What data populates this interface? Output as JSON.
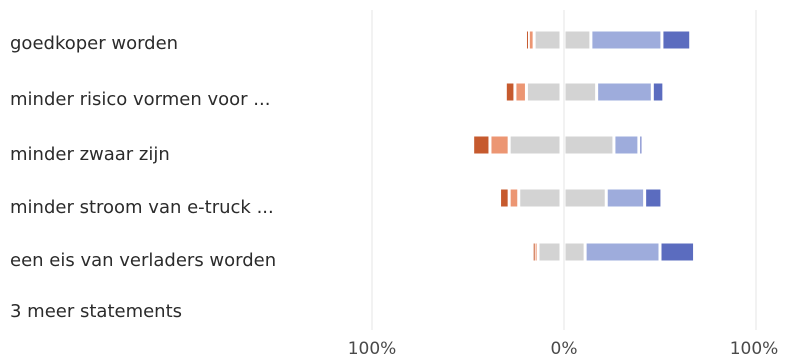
{
  "chart_data": {
    "type": "bar",
    "stacked": true,
    "diverging": true,
    "categories": [
      "goedkoper worden",
      "minder risico vormen voor ...",
      "minder zwaar zijn",
      "minder stroom van e-truck ...",
      "een eis van verladers worden"
    ],
    "xlim": [
      -100,
      100
    ],
    "x_ticks": [
      "100%",
      "0%",
      "100%"
    ],
    "grid": true,
    "series": [
      {
        "color": "#c65a2e",
        "values": [
          -1.5,
          -5,
          -9,
          -5,
          -1
        ]
      },
      {
        "color": "#ec9673",
        "values": [
          -3,
          -6,
          -10,
          -5,
          -2
        ]
      },
      {
        "color": "#d3d3d3",
        "values": [
          -14,
          -18,
          -27,
          -22,
          -12
        ]
      },
      {
        "color": "#d3d3d3",
        "values": [
          14,
          17,
          26,
          22,
          11
        ]
      },
      {
        "color": "#9eacdc",
        "values": [
          37,
          29,
          13,
          20,
          39
        ]
      },
      {
        "color": "#5b6cbf",
        "values": [
          15,
          6,
          2,
          9,
          18
        ]
      }
    ]
  },
  "more_link": "3 meer statements"
}
